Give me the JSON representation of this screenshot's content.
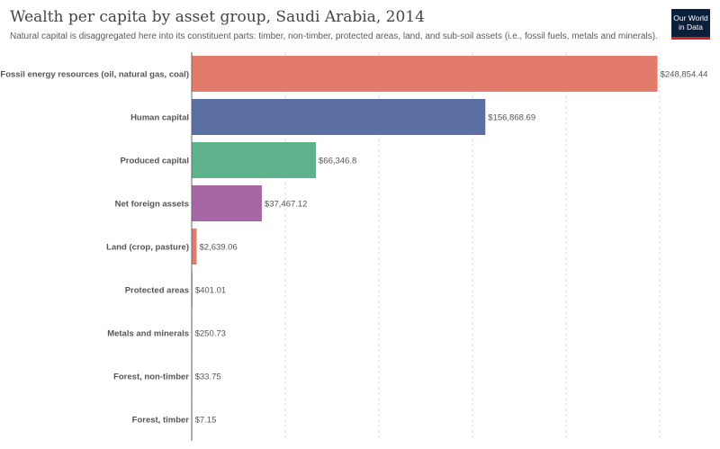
{
  "title": "Wealth per capita by asset group, Saudi Arabia, 2014",
  "subtitle": "Natural capital is disaggregated here into its constituent parts: timber, non-timber, protected areas, land, and sub-soil assets (i.e., fossil fuels, metals and minerals).",
  "logo": {
    "line1": "Our World",
    "line2": "in Data"
  },
  "colors": {
    "fossil": "#e27b6b",
    "human": "#5b6fa3",
    "produced": "#5fb38c",
    "foreign": "#a667a4",
    "land": "#e27b6b",
    "axis": "#666666",
    "grid": "#dddddd"
  },
  "chart_data": {
    "type": "bar",
    "orientation": "horizontal",
    "categories": [
      "Fossil energy resources (oil, natural gas, coal)",
      "Human capital",
      "Produced capital",
      "Net foreign assets",
      "Land (crop, pasture)",
      "Protected areas",
      "Metals and minerals",
      "Forest, non-timber",
      "Forest, timber"
    ],
    "values": [
      248854.44,
      156868.69,
      66346.8,
      37467.12,
      2639.06,
      401.01,
      250.73,
      33.75,
      7.15
    ],
    "value_labels": [
      "$248,854.44",
      "$156,868.69",
      "$66,346.8",
      "$37,467.12",
      "$2,639.06",
      "$401.01",
      "$250.73",
      "$33.75",
      "$7.15"
    ],
    "bar_colors": [
      "#e27b6b",
      "#5b6fa3",
      "#5fb38c",
      "#a667a4",
      "#e27b6b",
      "#e27b6b",
      "#e27b6b",
      "#e27b6b",
      "#e27b6b"
    ],
    "xlim": [
      0,
      250000
    ],
    "gridlines": [
      50000,
      100000,
      150000,
      200000,
      250000
    ],
    "grid": true,
    "xlabel": "",
    "ylabel": ""
  }
}
